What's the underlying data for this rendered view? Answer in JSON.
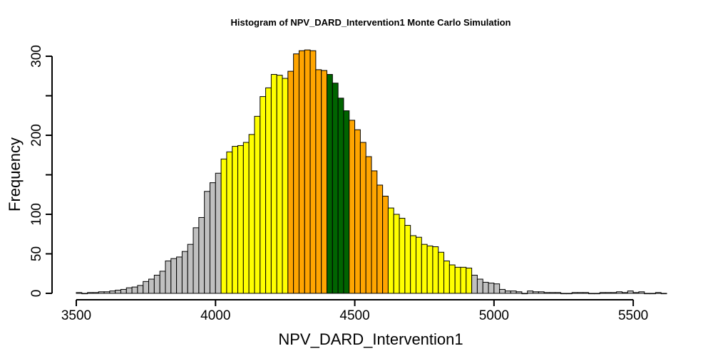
{
  "chart_data": {
    "type": "bar",
    "title": "Histogram of  NPV_DARD_Intervention1  Monte Carlo Simulation",
    "xlabel": "NPV_DARD_Intervention1",
    "ylabel": "Frequency",
    "xlim": [
      3500,
      5620
    ],
    "ylim": [
      0,
      300
    ],
    "bin_width": 20,
    "bin_start": 3500,
    "x_ticks": [
      3500,
      4000,
      4500,
      5000,
      5500
    ],
    "y_ticks": [
      0,
      50,
      100,
      200,
      300
    ],
    "y_minor_ticks": [
      150,
      250
    ],
    "colors": {
      "tail": "#C0C0C0",
      "inner": "#FFFF00",
      "middle": "#FFA500",
      "center": "#006400",
      "edge": "#000000"
    },
    "color_bands": [
      {
        "color": "tail",
        "from": 3500,
        "to": 4020
      },
      {
        "color": "inner",
        "from": 4020,
        "to": 4260
      },
      {
        "color": "middle",
        "from": 4260,
        "to": 4400
      },
      {
        "color": "center",
        "from": 4400,
        "to": 4480
      },
      {
        "color": "middle",
        "from": 4480,
        "to": 4620
      },
      {
        "color": "inner",
        "from": 4620,
        "to": 4920
      },
      {
        "color": "tail",
        "from": 4920,
        "to": 5620
      }
    ],
    "values": [
      1,
      0,
      1,
      1,
      2,
      2,
      3,
      4,
      5,
      7,
      8,
      10,
      15,
      18,
      23,
      28,
      41,
      44,
      46,
      53,
      62,
      83,
      96,
      129,
      140,
      152,
      170,
      179,
      186,
      187,
      191,
      201,
      224,
      249,
      260,
      277,
      276,
      272,
      281,
      303,
      307,
      308,
      307,
      283,
      282,
      277,
      266,
      247,
      231,
      219,
      207,
      191,
      173,
      155,
      137,
      123,
      108,
      100,
      95,
      86,
      73,
      71,
      62,
      60,
      59,
      52,
      41,
      36,
      33,
      33,
      32,
      23,
      18,
      14,
      13,
      12,
      5,
      3,
      3,
      2,
      0,
      3,
      2,
      2,
      1,
      1,
      1,
      0,
      0,
      1,
      1,
      1,
      0,
      0,
      1,
      1,
      1,
      2,
      1,
      3,
      1,
      2,
      0,
      0,
      1,
      0
    ]
  }
}
